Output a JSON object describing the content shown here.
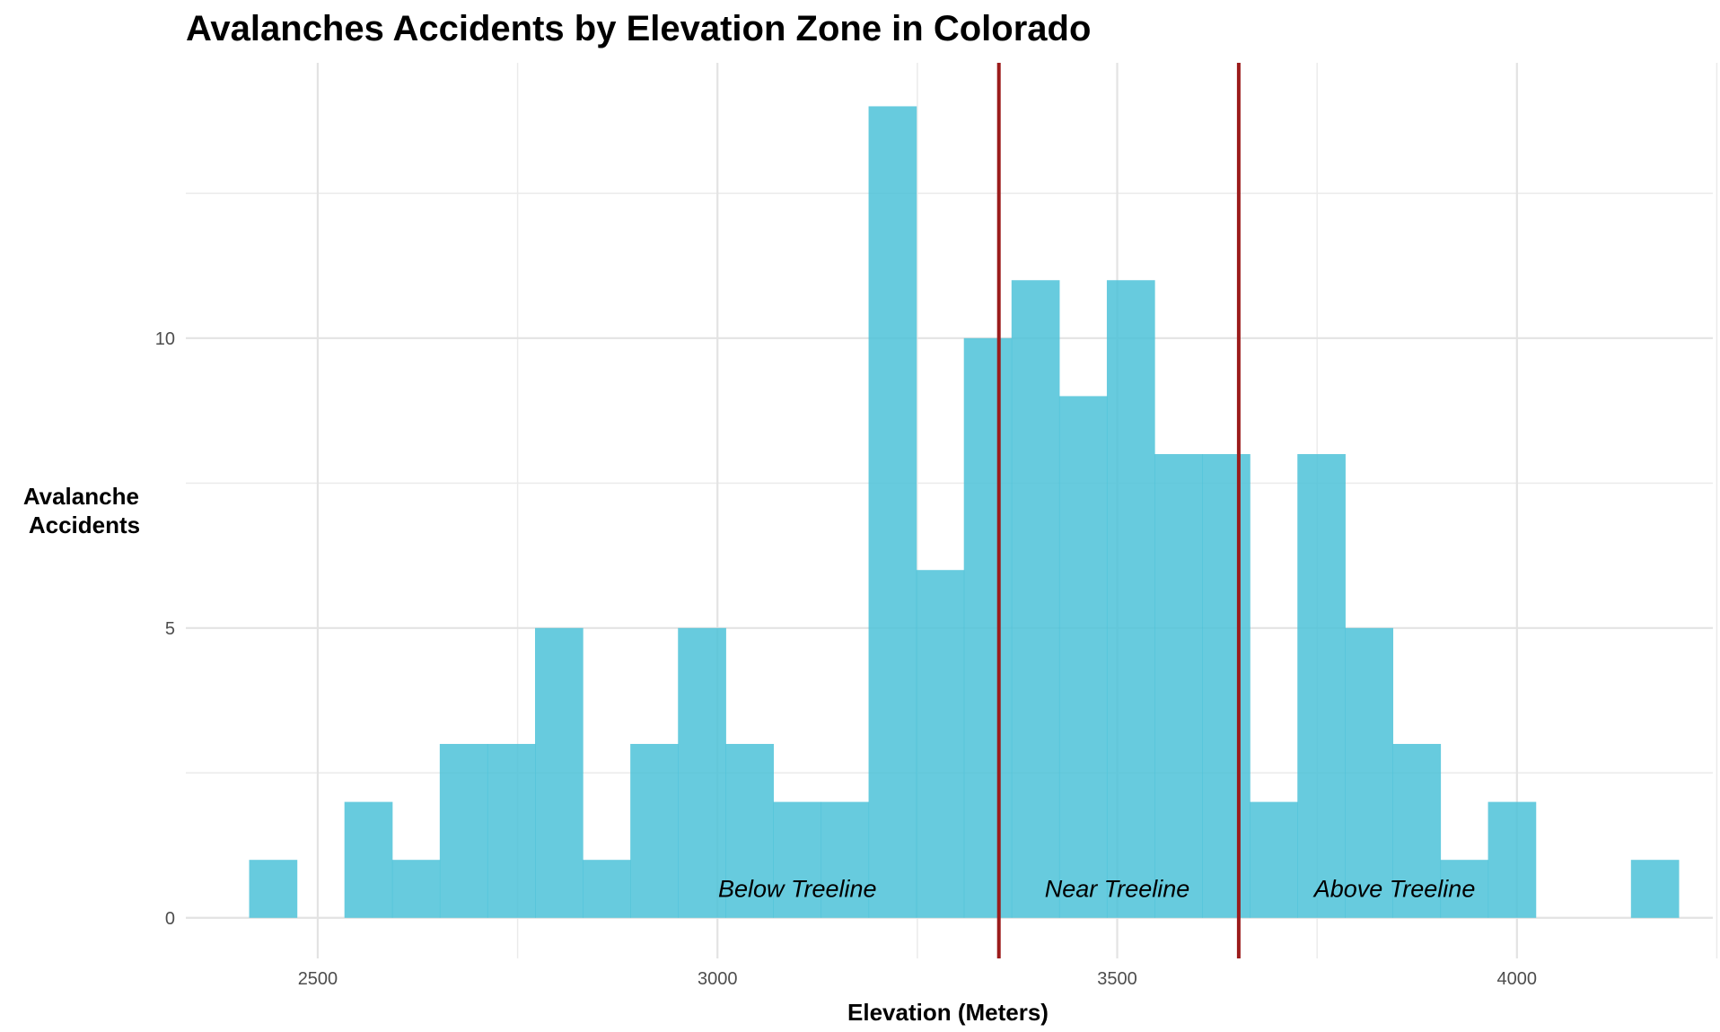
{
  "chart_data": {
    "type": "bar",
    "title": "Avalanches Accidents by Elevation Zone in Colorado",
    "xlabel": "Elevation (Meters)",
    "ylabel": [
      "Avalanche",
      "Accidents"
    ],
    "xlim": [
      2335,
      4245
    ],
    "ylim": [
      -0.7,
      14.75
    ],
    "x_ticks": [
      2500,
      3000,
      3500,
      4000
    ],
    "x_tick_labels": [
      "2500",
      "3000",
      "3500",
      "4000"
    ],
    "y_ticks": [
      0,
      5,
      10
    ],
    "y_tick_labels": [
      "0",
      "5",
      "10"
    ],
    "x_minor_ticks": [
      2750,
      3250,
      3750,
      4250
    ],
    "y_minor_ticks": [
      2.5,
      7.5,
      12.5
    ],
    "grid": true,
    "legend": "none",
    "bin_width": 59.6,
    "bins": [
      {
        "x0": 2414.2,
        "x1": 2473.8,
        "count": 1
      },
      {
        "x0": 2473.8,
        "x1": 2533.4,
        "count": 0
      },
      {
        "x0": 2533.4,
        "x1": 2593.0,
        "count": 2
      },
      {
        "x0": 2593.0,
        "x1": 2652.6,
        "count": 1
      },
      {
        "x0": 2652.6,
        "x1": 2712.2,
        "count": 3
      },
      {
        "x0": 2712.2,
        "x1": 2771.8,
        "count": 3
      },
      {
        "x0": 2771.8,
        "x1": 2831.4,
        "count": 5
      },
      {
        "x0": 2831.4,
        "x1": 2891.0,
        "count": 1
      },
      {
        "x0": 2891.0,
        "x1": 2950.6,
        "count": 3
      },
      {
        "x0": 2950.6,
        "x1": 3010.2,
        "count": 5
      },
      {
        "x0": 3010.2,
        "x1": 3069.8,
        "count": 3
      },
      {
        "x0": 3069.8,
        "x1": 3129.4,
        "count": 2
      },
      {
        "x0": 3129.4,
        "x1": 3189.0,
        "count": 2
      },
      {
        "x0": 3189.0,
        "x1": 3248.6,
        "count": 14
      },
      {
        "x0": 3248.6,
        "x1": 3308.2,
        "count": 6
      },
      {
        "x0": 3308.2,
        "x1": 3367.8,
        "count": 10
      },
      {
        "x0": 3367.8,
        "x1": 3427.4,
        "count": 11
      },
      {
        "x0": 3427.4,
        "x1": 3487.0,
        "count": 9
      },
      {
        "x0": 3487.0,
        "x1": 3546.6,
        "count": 11
      },
      {
        "x0": 3546.6,
        "x1": 3606.2,
        "count": 8
      },
      {
        "x0": 3606.2,
        "x1": 3665.8,
        "count": 8
      },
      {
        "x0": 3665.8,
        "x1": 3725.4,
        "count": 2
      },
      {
        "x0": 3725.4,
        "x1": 3785.0,
        "count": 8
      },
      {
        "x0": 3785.0,
        "x1": 3844.6,
        "count": 5
      },
      {
        "x0": 3844.6,
        "x1": 3904.2,
        "count": 3
      },
      {
        "x0": 3904.2,
        "x1": 3963.8,
        "count": 1
      },
      {
        "x0": 3963.8,
        "x1": 4023.4,
        "count": 2
      },
      {
        "x0": 4023.4,
        "x1": 4083.0,
        "count": 0
      },
      {
        "x0": 4083.0,
        "x1": 4142.6,
        "count": 0
      },
      {
        "x0": 4142.6,
        "x1": 4202.2,
        "count": 1
      }
    ],
    "bar_color": "#4cc2d8",
    "zone_boundaries": [
      3352,
      3652
    ],
    "zone_line_color": "#9b1b1b",
    "zones": [
      {
        "label": "Below Treeline",
        "x": 3100,
        "y": 0.5
      },
      {
        "label": "Near Treeline",
        "x": 3500,
        "y": 0.5
      },
      {
        "label": "Above Treeline",
        "x": 3847,
        "y": 0.5
      }
    ]
  }
}
